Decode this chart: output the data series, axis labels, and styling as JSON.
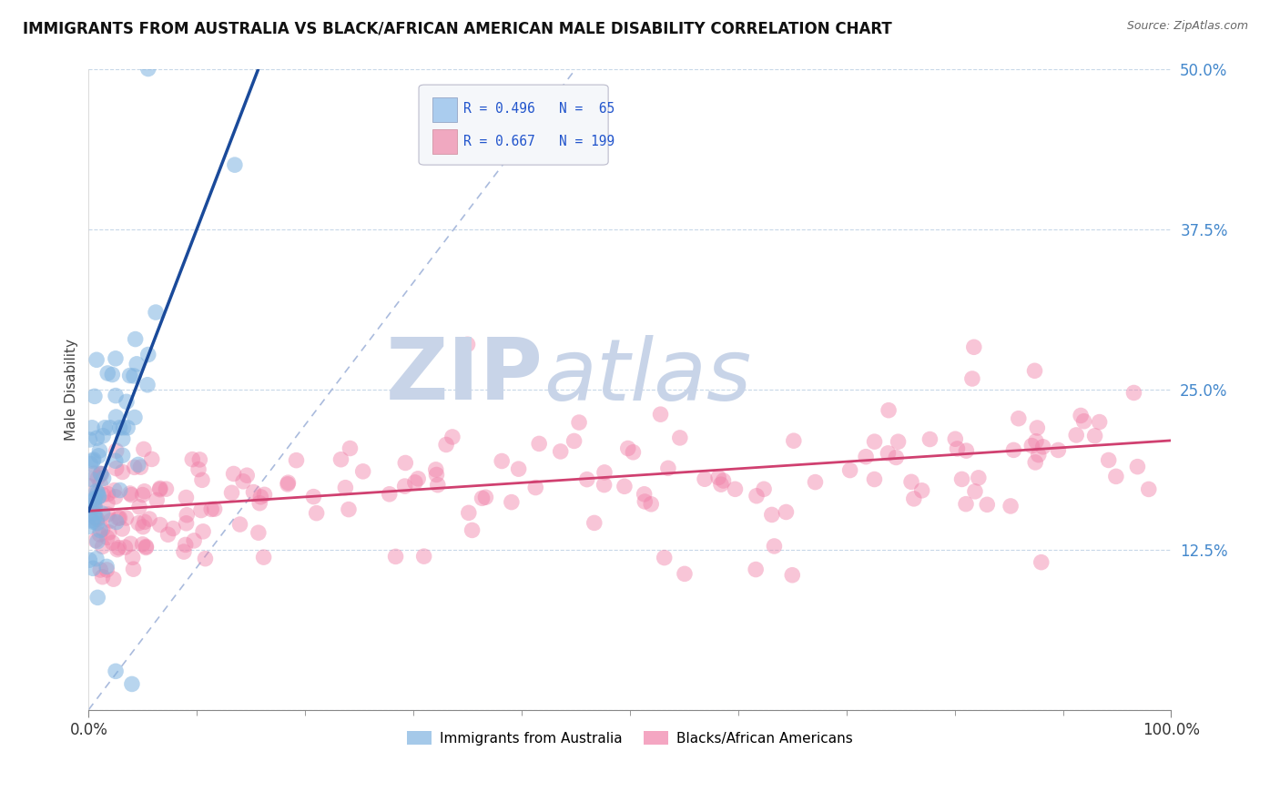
{
  "title": "IMMIGRANTS FROM AUSTRALIA VS BLACK/AFRICAN AMERICAN MALE DISABILITY CORRELATION CHART",
  "source": "Source: ZipAtlas.com",
  "ylabel": "Male Disability",
  "xmin": 0.0,
  "xmax": 1.0,
  "ymin": 0.0,
  "ymax": 0.5,
  "yticks": [
    0.0,
    0.125,
    0.25,
    0.375,
    0.5
  ],
  "ytick_labels": [
    "",
    "12.5%",
    "25.0%",
    "37.5%",
    "50.0%"
  ],
  "legend_R1": "R = 0.496",
  "legend_N1": "N =  65",
  "legend_R2": "R = 0.667",
  "legend_N2": "N = 199",
  "watermark_zip": "ZIP",
  "watermark_atlas": "atlas",
  "watermark_color": "#c8d4e8",
  "scatter_blue_color": "#7fb3e0",
  "scatter_blue_alpha": 0.55,
  "scatter_pink_color": "#f080a8",
  "scatter_pink_alpha": 0.45,
  "trend_blue_color": "#1a4a9a",
  "trend_pink_color": "#d04070",
  "diag_color": "#aabbdd",
  "legend_box_color": "#7fb3e0",
  "legend_box_pink": "#f08ab8",
  "background_color": "#ffffff",
  "grid_color": "#c8d8e8",
  "title_fontsize": 12,
  "tick_color": "#4488cc",
  "blue_intercept": 0.155,
  "blue_slope": 2.2,
  "pink_intercept": 0.155,
  "pink_slope": 0.055,
  "blue_N": 65,
  "pink_N": 199
}
